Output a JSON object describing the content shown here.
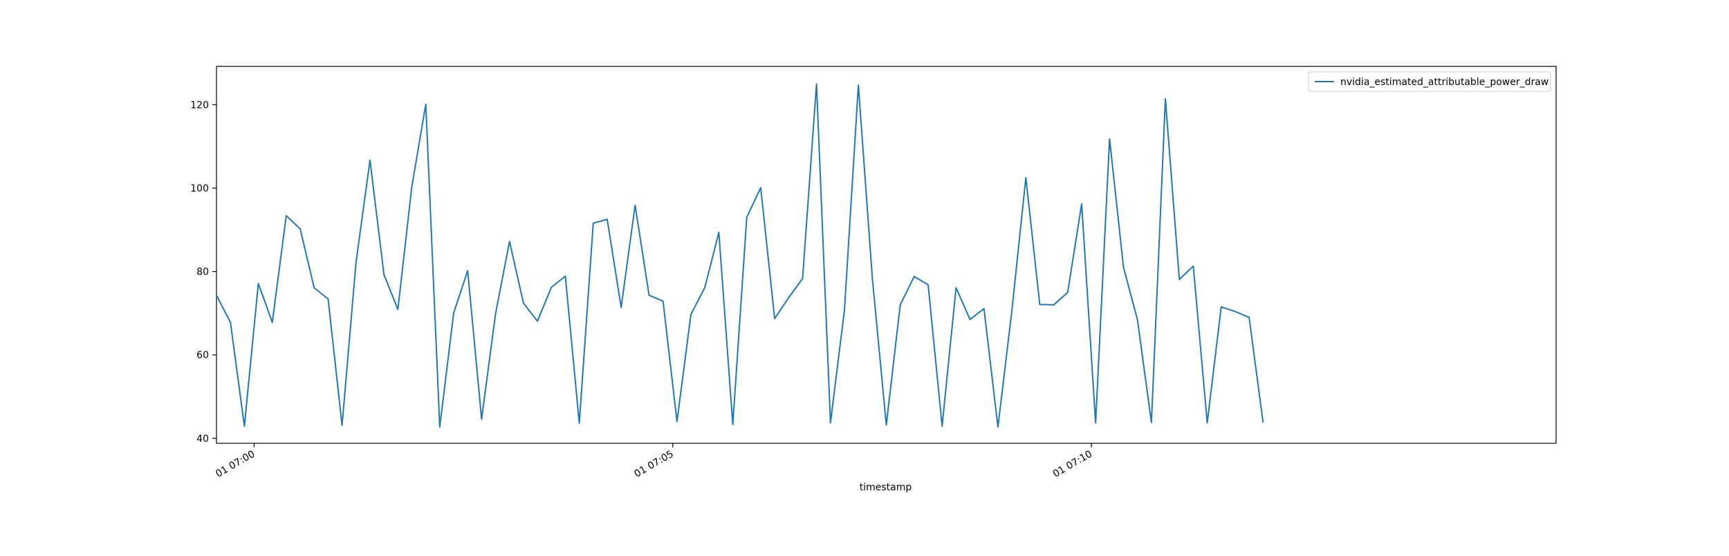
{
  "chart_data": {
    "type": "line",
    "title": "",
    "xlabel": "timestamp",
    "ylabel": "",
    "legend_position": "top-right",
    "grid": false,
    "x_start": "2024-01-01 06:59:33",
    "x_step_seconds": 10,
    "xlim": [
      "2024-01-01 06:59:33",
      "2024-01-01 07:15:33"
    ],
    "ylim": [
      38.8,
      129.2
    ],
    "x_ticks": [
      {
        "value": "2024-01-01 07:00:00",
        "label": "01 07:00"
      },
      {
        "value": "2024-01-01 07:05:00",
        "label": "01 07:05"
      },
      {
        "value": "2024-01-01 07:10:00",
        "label": "01 07:10"
      }
    ],
    "y_ticks": [
      40,
      60,
      80,
      100,
      120
    ],
    "series": [
      {
        "name": "nvidia_estimated_attributable_power_draw",
        "color": "#1f77b4",
        "values": [
          74.3,
          67.8,
          42.9,
          77.1,
          67.8,
          93.4,
          90.2,
          76.1,
          73.4,
          43.1,
          82.2,
          106.7,
          79.3,
          70.9,
          100.4,
          120.1,
          42.7,
          70.1,
          80.2,
          44.6,
          69.9,
          87.2,
          72.4,
          68.1,
          76.2,
          78.9,
          43.6,
          91.6,
          92.5,
          71.4,
          95.9,
          74.3,
          72.9,
          44.0,
          69.7,
          76.2,
          89.4,
          43.3,
          93.0,
          100.1,
          68.7,
          73.7,
          78.3,
          125.0,
          43.7,
          70.7,
          124.7,
          78.4,
          43.2,
          72.0,
          78.8,
          76.8,
          42.9,
          76.1,
          68.5,
          71.1,
          42.7,
          70.6,
          102.5,
          72.1,
          72.0,
          75.0,
          96.2,
          43.7,
          111.8,
          81.0,
          68.4,
          43.8,
          121.4,
          78.1,
          81.3,
          43.7,
          71.5,
          70.4,
          69.0,
          43.8
        ]
      }
    ]
  }
}
